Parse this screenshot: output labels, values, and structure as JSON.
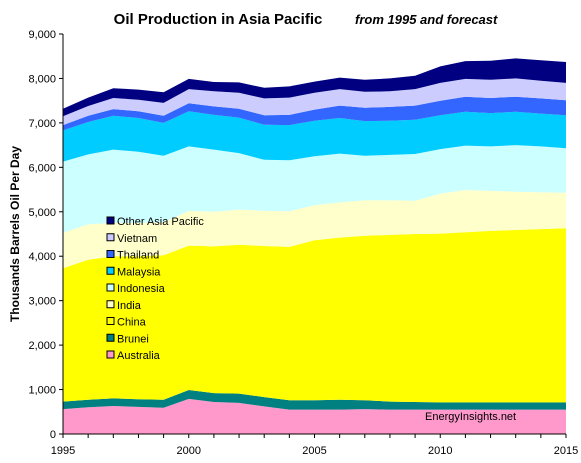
{
  "chart_data": {
    "type": "area",
    "stacked": true,
    "title": "Oil Production  in Asia Pacific",
    "subtitle": "from 1995 and forecast",
    "ylabel": "Thousands Barrels Oil Per Day",
    "xlabel": "",
    "xlim": [
      1995,
      2015
    ],
    "ylim": [
      0,
      9000
    ],
    "x_ticks": [
      "1995",
      "2000",
      "2005",
      "2010",
      "2015"
    ],
    "y_ticks": [
      "0",
      "1,000",
      "2,000",
      "3,000",
      "4,000",
      "5,000",
      "6,000",
      "7,000",
      "8,000",
      "9,000"
    ],
    "grid": false,
    "watermark": "EnergyInsights.net",
    "x": [
      1995,
      1996,
      1997,
      1998,
      1999,
      2000,
      2001,
      2002,
      2003,
      2004,
      2005,
      2006,
      2007,
      2008,
      2009,
      2010,
      2011,
      2012,
      2013,
      2014,
      2015
    ],
    "series": [
      {
        "name": "Australia",
        "color": "#ff99cc",
        "values": [
          560,
          600,
          630,
          610,
          590,
          790,
          720,
          700,
          620,
          550,
          550,
          550,
          560,
          550,
          550,
          550,
          550,
          550,
          550,
          550,
          550
        ]
      },
      {
        "name": "Brunei",
        "color": "#008080",
        "values": [
          170,
          170,
          170,
          170,
          180,
          200,
          200,
          210,
          210,
          210,
          210,
          220,
          200,
          180,
          170,
          160,
          160,
          160,
          160,
          160,
          160
        ]
      },
      {
        "name": "China",
        "color": "#ffff00",
        "values": [
          3000,
          3150,
          3200,
          3220,
          3250,
          3250,
          3300,
          3350,
          3400,
          3450,
          3600,
          3650,
          3700,
          3750,
          3780,
          3800,
          3830,
          3860,
          3880,
          3900,
          3920
        ]
      },
      {
        "name": "India",
        "color": "#ffffcc",
        "values": [
          800,
          800,
          750,
          750,
          740,
          780,
          780,
          790,
          790,
          800,
          790,
          790,
          800,
          780,
          750,
          900,
          950,
          900,
          860,
          830,
          800
        ]
      },
      {
        "name": "Indonesia",
        "color": "#ccffff",
        "values": [
          1600,
          1570,
          1650,
          1600,
          1500,
          1450,
          1400,
          1270,
          1150,
          1150,
          1100,
          1100,
          1000,
          1020,
          1050,
          1000,
          1000,
          1000,
          1050,
          1030,
          1000
        ]
      },
      {
        "name": "Malaysia",
        "color": "#00ccff",
        "values": [
          700,
          730,
          760,
          760,
          740,
          790,
          780,
          800,
          790,
          790,
          800,
          800,
          780,
          770,
          770,
          760,
          760,
          750,
          750,
          740,
          740
        ]
      },
      {
        "name": "Thailand",
        "color": "#3366ff",
        "values": [
          120,
          140,
          150,
          150,
          160,
          180,
          190,
          200,
          210,
          230,
          250,
          280,
          300,
          310,
          320,
          330,
          340,
          340,
          340,
          340,
          340
        ]
      },
      {
        "name": "Vietnam",
        "color": "#ccccff",
        "values": [
          200,
          220,
          250,
          260,
          290,
          320,
          340,
          360,
          380,
          390,
          380,
          370,
          360,
          350,
          370,
          400,
          400,
          410,
          410,
          400,
          390
        ]
      },
      {
        "name": "Other Asia Pacific",
        "color": "#000080",
        "values": [
          170,
          190,
          220,
          230,
          240,
          230,
          210,
          230,
          240,
          250,
          250,
          260,
          270,
          290,
          300,
          370,
          400,
          430,
          450,
          460,
          470
        ]
      }
    ],
    "legend": {
      "placement": "left-center",
      "order": [
        "Other Asia Pacific",
        "Vietnam",
        "Thailand",
        "Malaysia",
        "Indonesia",
        "India",
        "China",
        "Brunei",
        "Australia"
      ]
    }
  }
}
